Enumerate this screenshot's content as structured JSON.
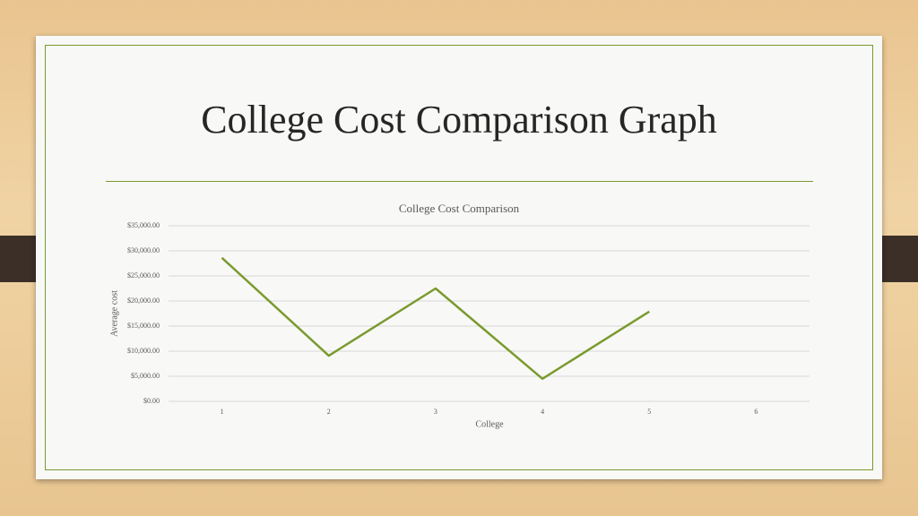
{
  "slide": {
    "title": "College Cost Comparison Graph"
  },
  "chart_data": {
    "type": "line",
    "title": "College Cost Comparison",
    "x_label": "College",
    "y_label": "Average cost",
    "categories": [
      "1",
      "2",
      "3",
      "4",
      "5",
      "6"
    ],
    "series": [
      {
        "name": "Average cost",
        "color": "#7a9a2e",
        "values": [
          28600,
          9100,
          22500,
          4500,
          17900,
          null
        ]
      }
    ],
    "ylim": [
      0,
      35000
    ],
    "yticks": [
      {
        "value": 0,
        "label": "$0.00"
      },
      {
        "value": 5000,
        "label": "$5,000.00"
      },
      {
        "value": 10000,
        "label": "$10,000.00"
      },
      {
        "value": 15000,
        "label": "$15,000.00"
      },
      {
        "value": 20000,
        "label": "$20,000.00"
      },
      {
        "value": 25000,
        "label": "$25,000.00"
      },
      {
        "value": 30000,
        "label": "$30,000.00"
      },
      {
        "value": 35000,
        "label": "$35,000.00"
      }
    ],
    "grid": true
  }
}
